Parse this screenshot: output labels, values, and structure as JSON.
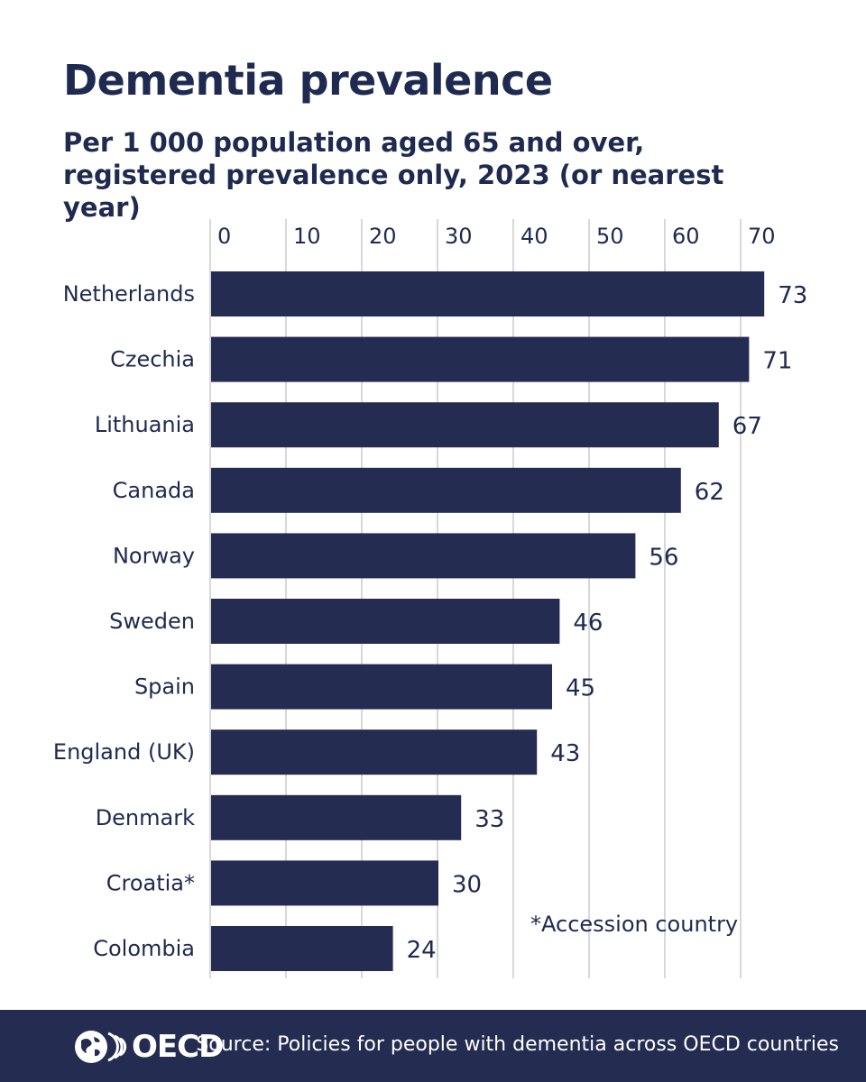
{
  "header": {
    "title": "Dementia prevalence",
    "subtitle": "Per 1 000 population aged 65 and over, registered prevalence only, 2023 (or nearest year)"
  },
  "chart_data": {
    "type": "bar",
    "orientation": "horizontal",
    "title": "Dementia prevalence",
    "subtitle": "Per 1 000 population aged 65 and over, registered prevalence only, 2023 (or nearest year)",
    "categories": [
      "Netherlands",
      "Czechia",
      "Lithuania",
      "Canada",
      "Norway",
      "Sweden",
      "Spain",
      "England (UK)",
      "Denmark",
      "Croatia*",
      "Colombia"
    ],
    "values": [
      73,
      71,
      67,
      62,
      56,
      46,
      45,
      43,
      33,
      30,
      24
    ],
    "xticks": [
      0,
      10,
      20,
      30,
      40,
      50,
      60,
      70
    ],
    "xlim": [
      0,
      75
    ],
    "xlabel": "",
    "ylabel": "",
    "grid": true,
    "bar_color": "#242c52",
    "annotation": "*Accession country"
  },
  "footer": {
    "logo_text": "OECD",
    "source": "Source: Policies for people with dementia across OECD countries"
  }
}
